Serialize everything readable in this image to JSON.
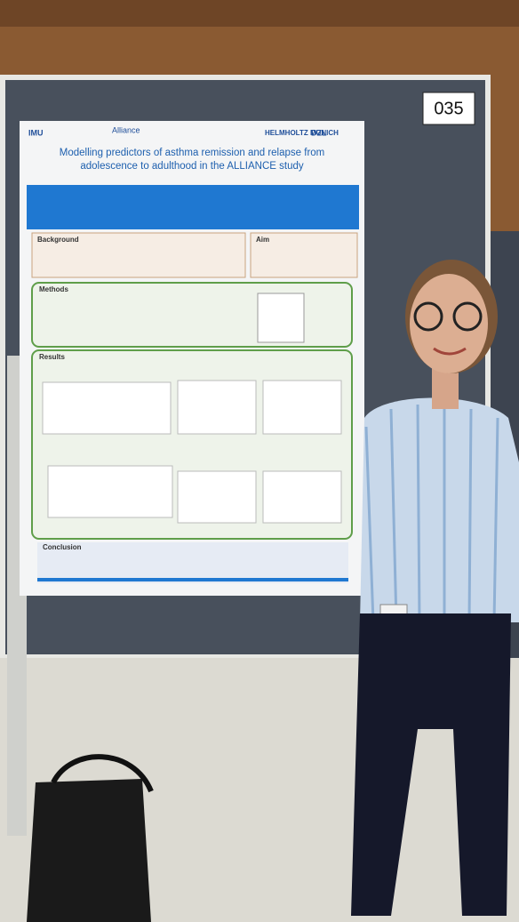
{
  "poster_number": "035",
  "poster": {
    "logos": [
      "IMU",
      "Alliance",
      "HELMHOLTZ MUNICH",
      "DZL"
    ],
    "title_lines": [
      "Modelling predictors of asthma remission and relapse from",
      "adolescence to adulthood in the ALLIANCE study"
    ],
    "sections": {
      "background": "Background",
      "aim": "Aim",
      "methods": "Methods",
      "results": "Results",
      "conclusion": "Conclusion"
    }
  }
}
